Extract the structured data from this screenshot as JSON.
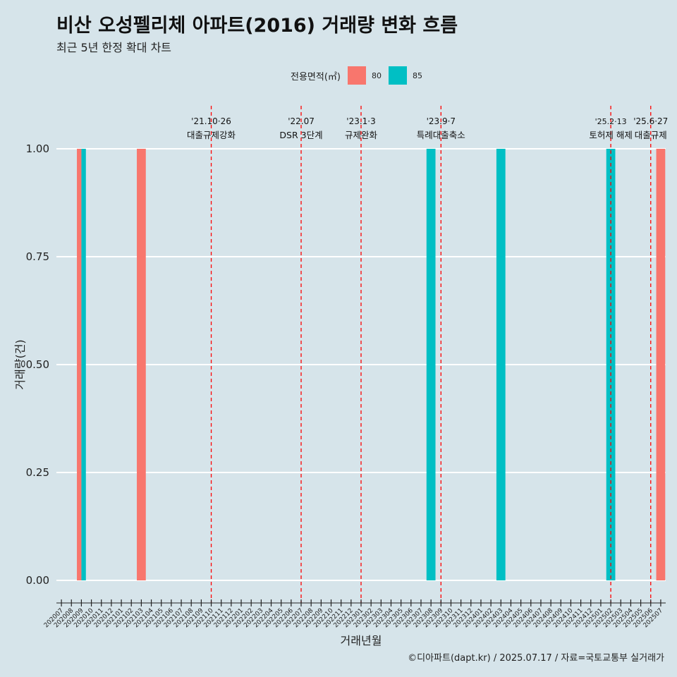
{
  "title": "비산 오성펠리체 아파트(2016) 거래량 변화 흐름",
  "subtitle": "최근 5년 한정 확대 차트",
  "legend": {
    "title": "전용면적(㎡)",
    "items": [
      {
        "label": "80",
        "color": "#F8766D"
      },
      {
        "label": "85",
        "color": "#00BFC4"
      }
    ]
  },
  "caption": "©디아파트(dapt.kr) / 2025.07.17 / 자료=국토교통부 실거래가",
  "chart_data": {
    "type": "bar",
    "xlabel": "거래년월",
    "ylabel": "거래량(건)",
    "ylim": [
      0,
      1
    ],
    "y_ticks": [
      "0.00",
      "0.25",
      "0.50",
      "0.75",
      "1.00"
    ],
    "categories": [
      "202007",
      "202008",
      "202009",
      "202010",
      "202011",
      "202012",
      "202101",
      "202102",
      "202103",
      "202104",
      "202105",
      "202106",
      "202107",
      "202108",
      "202109",
      "202110",
      "202111",
      "202112",
      "202201",
      "202202",
      "202203",
      "202204",
      "202205",
      "202206",
      "202207",
      "202208",
      "202209",
      "202210",
      "202211",
      "202212",
      "202301",
      "202302",
      "202303",
      "202304",
      "202305",
      "202306",
      "202307",
      "202308",
      "202309",
      "202310",
      "202311",
      "202312",
      "202401",
      "202402",
      "202403",
      "202404",
      "202405",
      "202406",
      "202407",
      "202408",
      "202409",
      "202410",
      "202411",
      "202412",
      "202501",
      "202502",
      "202503",
      "202504",
      "202505",
      "202506",
      "202507"
    ],
    "series": [
      {
        "name": "80",
        "color": "#F8766D",
        "points": [
          {
            "x": "202009",
            "y": 1
          },
          {
            "x": "202103",
            "y": 1
          },
          {
            "x": "202507",
            "y": 1
          }
        ]
      },
      {
        "name": "85",
        "color": "#00BFC4",
        "points": [
          {
            "x": "202009",
            "y": 1
          },
          {
            "x": "202308",
            "y": 1
          },
          {
            "x": "202403",
            "y": 1
          },
          {
            "x": "202502",
            "y": 1
          }
        ]
      }
    ],
    "annotations": [
      {
        "x": "202110",
        "date": "'21.10·26",
        "label": "대출규제강화"
      },
      {
        "x": "202207",
        "date": "'22.07",
        "label": "DSR 3단계"
      },
      {
        "x": "202301",
        "date": "'23.1·3",
        "label": "규제완화"
      },
      {
        "x": "202309",
        "date": "'23.9·7",
        "label": "특례대출축소"
      },
      {
        "x": "202502",
        "date": "'25.2·13",
        "label": "토허제 해제"
      },
      {
        "x": "202506",
        "date": "'25.6·27",
        "label": "대출규제"
      }
    ],
    "grid": true,
    "legend_position": "top"
  }
}
